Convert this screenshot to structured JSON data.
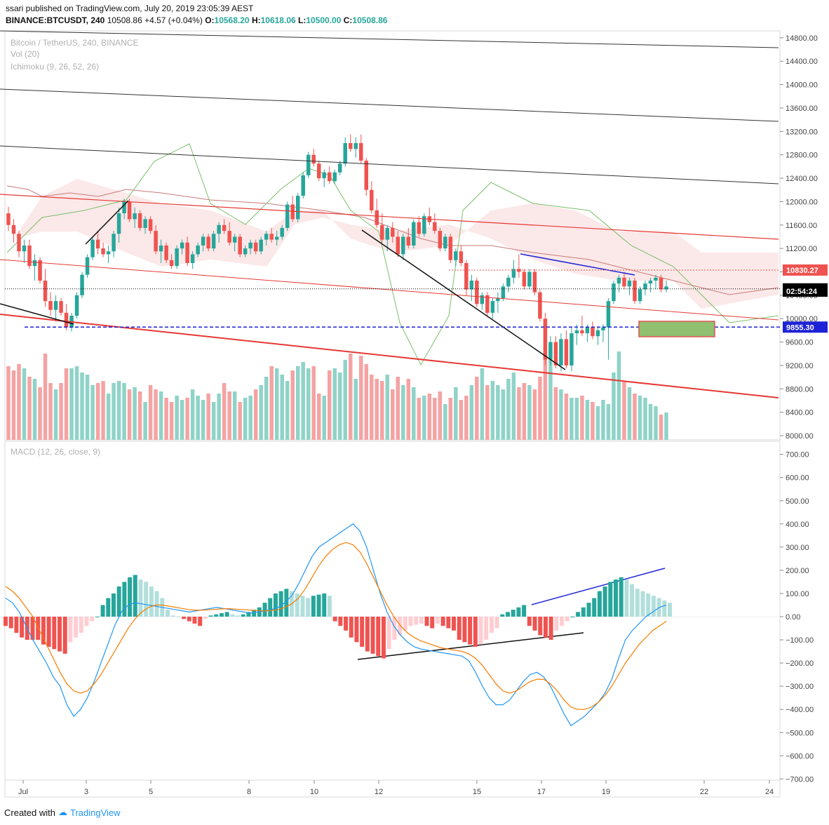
{
  "header": {
    "published": "ssari published on TradingView.com, July 20, 2019 23:05:39 AEST",
    "symbol": "BINANCE:BTCUSDT, 240",
    "last": "10508.86",
    "change": "+4.57 (+0.04%)",
    "o_label": "O:",
    "o_value": "10568.20",
    "h_label": "H:",
    "h_value": "10618.06",
    "l_label": "L:",
    "l_value": "10500.00",
    "c_label": "C:",
    "c_value": "10508.86"
  },
  "legend": {
    "title": "Bitcoin / TetherUS, 240, BINANCE",
    "vol": "Vol (20)",
    "ichimoku": "Ichimoku (9, 26, 52, 26)",
    "macd": "MACD (12, 26, close, 9)"
  },
  "footer": {
    "created_with": "Created with",
    "brand": "TradingView"
  },
  "colors": {
    "up": "#26a69a",
    "down": "#ef5350",
    "up_vol": "#8fd3c8",
    "down_vol": "#f4a3a3",
    "macd": "#2196f3",
    "signal": "#f57c00"
  },
  "chart_data": {
    "type": "candlestick",
    "price_axis": {
      "ticks": [
        "14800.00",
        "14400.00",
        "14000.00",
        "13600.00",
        "13200.00",
        "12800.00",
        "12400.00",
        "12000.00",
        "11600.00",
        "11200.00",
        "10800.00",
        "10400.00",
        "10000.00",
        "9600.00",
        "9200.00",
        "8800.00",
        "8400.00",
        "8000.00"
      ]
    },
    "price_labels": [
      {
        "value": 10830.27,
        "text": "10830.27",
        "color": "#ef5350"
      },
      {
        "value": 10508.86,
        "text": "10508.86",
        "color": "#000000"
      },
      {
        "value": 10470,
        "text": "02:54:24",
        "color": "#000000"
      },
      {
        "value": 9855.3,
        "text": "9855.30",
        "color": "#1e22d6"
      }
    ],
    "macd_axis": {
      "ticks": [
        "700.00",
        "600.00",
        "500.00",
        "400.00",
        "300.00",
        "200.00",
        "100.00",
        "0.00",
        "−100.00",
        "−200.00",
        "−300.00",
        "−400.00",
        "−500.00",
        "−600.00",
        "−700.00"
      ]
    },
    "time_axis": {
      "ticks": [
        "Jul",
        "3",
        "5",
        "8",
        "10",
        "12",
        "15",
        "17",
        "19",
        "22",
        "24"
      ]
    },
    "candles": [
      [
        11800,
        11910,
        11500,
        11600
      ],
      [
        11600,
        11700,
        11300,
        11450
      ],
      [
        11450,
        11500,
        11050,
        11150
      ],
      [
        11150,
        11350,
        10950,
        11250
      ],
      [
        11250,
        11350,
        10850,
        10900
      ],
      [
        10900,
        11100,
        10650,
        11000
      ],
      [
        11000,
        11050,
        10600,
        10650
      ],
      [
        10650,
        10850,
        10200,
        10300
      ],
      [
        10300,
        10450,
        10050,
        10150
      ],
      [
        10150,
        10400,
        9950,
        10300
      ],
      [
        10300,
        10350,
        10050,
        10100
      ],
      [
        10100,
        10250,
        9800,
        9850
      ],
      [
        9850,
        10100,
        9780,
        10050
      ],
      [
        10050,
        10450,
        10000,
        10400
      ],
      [
        10400,
        10800,
        10350,
        10750
      ],
      [
        10750,
        11100,
        10700,
        11050
      ],
      [
        11050,
        11400,
        11000,
        11350
      ],
      [
        11350,
        11500,
        11100,
        11200
      ],
      [
        11200,
        11300,
        11050,
        11100
      ],
      [
        11100,
        11250,
        10950,
        11150
      ],
      [
        11150,
        11500,
        11050,
        11450
      ],
      [
        11450,
        11900,
        11300,
        11800
      ],
      [
        11800,
        12050,
        11700,
        12000
      ],
      [
        12000,
        12050,
        11650,
        11700
      ],
      [
        11700,
        11900,
        11550,
        11800
      ],
      [
        11800,
        11850,
        11500,
        11550
      ],
      [
        11550,
        11750,
        11450,
        11700
      ],
      [
        11700,
        11750,
        11450,
        11500
      ],
      [
        11500,
        11600,
        11100,
        11150
      ],
      [
        11150,
        11350,
        10950,
        11250
      ],
      [
        11250,
        11300,
        10950,
        11000
      ],
      [
        11000,
        11100,
        10850,
        10900
      ],
      [
        10900,
        11250,
        10850,
        11200
      ],
      [
        11200,
        11350,
        11100,
        11300
      ],
      [
        11300,
        11400,
        10900,
        10950
      ],
      [
        10950,
        11150,
        10850,
        11100
      ],
      [
        11100,
        11300,
        11050,
        11250
      ],
      [
        11250,
        11450,
        11150,
        11400
      ],
      [
        11400,
        11450,
        11150,
        11200
      ],
      [
        11200,
        11500,
        11150,
        11450
      ],
      [
        11450,
        11650,
        11300,
        11600
      ],
      [
        11600,
        11700,
        11450,
        11500
      ],
      [
        11500,
        11650,
        11250,
        11300
      ],
      [
        11300,
        11450,
        11150,
        11400
      ],
      [
        11400,
        11450,
        11050,
        11100
      ],
      [
        11100,
        11250,
        11050,
        11200
      ],
      [
        11200,
        11350,
        11100,
        11300
      ],
      [
        11300,
        11350,
        11100,
        11150
      ],
      [
        11150,
        11400,
        11100,
        11350
      ],
      [
        11350,
        11500,
        11250,
        11450
      ],
      [
        11450,
        11550,
        11300,
        11350
      ],
      [
        11350,
        11500,
        11250,
        11400
      ],
      [
        11400,
        11600,
        11350,
        11550
      ],
      [
        11550,
        12000,
        11500,
        11950
      ],
      [
        11950,
        12100,
        11650,
        11700
      ],
      [
        11700,
        12150,
        11650,
        12100
      ],
      [
        12100,
        12500,
        12050,
        12450
      ],
      [
        12450,
        12850,
        12400,
        12800
      ],
      [
        12800,
        12900,
        12600,
        12650
      ],
      [
        12650,
        12700,
        12350,
        12400
      ],
      [
        12400,
        12550,
        12250,
        12500
      ],
      [
        12500,
        12600,
        12300,
        12350
      ],
      [
        12350,
        12550,
        12300,
        12500
      ],
      [
        12500,
        12700,
        12450,
        12650
      ],
      [
        12650,
        13100,
        12600,
        13000
      ],
      [
        13000,
        13150,
        12850,
        12900
      ],
      [
        12900,
        13100,
        12750,
        13000
      ],
      [
        13000,
        13150,
        12650,
        12700
      ],
      [
        12700,
        12750,
        12100,
        12200
      ],
      [
        12200,
        12350,
        11800,
        11850
      ],
      [
        11850,
        12050,
        11550,
        11600
      ],
      [
        11600,
        11800,
        11300,
        11350
      ],
      [
        11350,
        11600,
        11150,
        11550
      ],
      [
        11550,
        11650,
        11300,
        11400
      ],
      [
        11400,
        11500,
        11050,
        11100
      ],
      [
        11100,
        11450,
        11000,
        11400
      ],
      [
        11400,
        11550,
        11200,
        11250
      ],
      [
        11250,
        11700,
        11200,
        11650
      ],
      [
        11650,
        11750,
        11400,
        11450
      ],
      [
        11450,
        11800,
        11400,
        11750
      ],
      [
        11750,
        11900,
        11600,
        11650
      ],
      [
        11650,
        11800,
        11450,
        11500
      ],
      [
        11500,
        11550,
        11150,
        11200
      ],
      [
        11200,
        11450,
        11150,
        11400
      ],
      [
        11400,
        11450,
        10950,
        11000
      ],
      [
        11000,
        11200,
        10900,
        11150
      ],
      [
        11150,
        11250,
        10900,
        10950
      ],
      [
        10950,
        11000,
        10400,
        10500
      ],
      [
        10500,
        10750,
        10300,
        10650
      ],
      [
        10650,
        10700,
        10200,
        10250
      ],
      [
        10250,
        10450,
        10150,
        10400
      ],
      [
        10400,
        10450,
        10050,
        10100
      ],
      [
        10100,
        10350,
        10000,
        10300
      ],
      [
        10300,
        10450,
        10100,
        10350
      ],
      [
        10350,
        10600,
        10300,
        10550
      ],
      [
        10550,
        10750,
        10450,
        10700
      ],
      [
        10700,
        11000,
        10600,
        10850
      ],
      [
        10850,
        11100,
        10700,
        10800
      ],
      [
        10800,
        10850,
        10500,
        10550
      ],
      [
        10550,
        10850,
        10500,
        10800
      ],
      [
        10800,
        10850,
        10400,
        10450
      ],
      [
        10450,
        10500,
        9950,
        10000
      ],
      [
        10000,
        10100,
        9200,
        9300
      ],
      [
        9300,
        9700,
        9200,
        9600
      ],
      [
        9600,
        9700,
        9150,
        9200
      ],
      [
        9200,
        9750,
        9100,
        9650
      ],
      [
        9650,
        9800,
        9150,
        9200
      ],
      [
        9200,
        9850,
        9100,
        9750
      ],
      [
        9750,
        9900,
        9550,
        9800
      ],
      [
        9800,
        10050,
        9700,
        9750
      ],
      [
        9750,
        9900,
        9600,
        9850
      ],
      [
        9850,
        9950,
        9650,
        9700
      ],
      [
        9700,
        9850,
        9550,
        9800
      ],
      [
        9800,
        9900,
        9600,
        9850
      ],
      [
        9850,
        10350,
        9300,
        10300
      ],
      [
        10300,
        10650,
        10250,
        10600
      ],
      [
        10600,
        10750,
        10450,
        10700
      ],
      [
        10700,
        10800,
        10500,
        10550
      ],
      [
        10550,
        10700,
        10400,
        10650
      ],
      [
        10650,
        10700,
        10250,
        10300
      ],
      [
        10300,
        10550,
        10250,
        10500
      ],
      [
        10500,
        10650,
        10400,
        10600
      ],
      [
        10600,
        10700,
        10450,
        10650
      ],
      [
        10650,
        10750,
        10500,
        10700
      ],
      [
        10700,
        10750,
        10450,
        10500
      ],
      [
        10500,
        10650,
        10450,
        10550
      ]
    ],
    "volume": [
      35,
      33,
      36,
      34,
      30,
      29,
      25,
      41,
      27,
      24,
      27,
      34,
      34,
      35,
      32,
      31,
      26,
      27,
      28,
      22,
      27,
      28,
      27,
      24,
      25,
      23,
      18,
      26,
      24,
      23,
      20,
      18,
      21,
      19,
      20,
      24,
      21,
      19,
      22,
      18,
      22,
      27,
      23,
      23,
      18,
      20,
      21,
      24,
      26,
      30,
      35,
      34,
      31,
      28,
      33,
      35,
      37,
      34,
      35,
      22,
      21,
      33,
      34,
      32,
      38,
      41,
      29,
      40,
      36,
      31,
      29,
      28,
      31,
      24,
      30,
      26,
      29,
      25,
      20,
      21,
      22,
      20,
      23,
      17,
      20,
      25,
      19,
      21,
      26,
      30,
      34,
      26,
      28,
      26,
      24,
      29,
      32,
      25,
      27,
      26,
      24,
      30,
      40,
      38,
      25,
      24,
      22,
      20,
      20,
      21,
      19,
      18,
      16,
      19,
      17,
      32,
      42,
      28,
      25,
      22,
      21,
      20,
      17,
      16,
      12,
      13,
      12,
      5
    ],
    "macd": {
      "line": [
        80,
        60,
        20,
        -40,
        -100,
        -150,
        -200,
        -260,
        -300,
        -380,
        -430,
        -400,
        -350,
        -280,
        -200,
        -120,
        -40,
        20,
        50,
        60,
        55,
        50,
        45,
        40,
        35,
        30,
        25,
        20,
        25,
        30,
        35,
        40,
        35,
        30,
        25,
        20,
        15,
        20,
        25,
        30,
        40,
        60,
        90,
        140,
        200,
        260,
        300,
        320,
        340,
        360,
        380,
        400,
        370,
        300,
        200,
        100,
        20,
        -40,
        -80,
        -110,
        -130,
        -140,
        -145,
        -150,
        -155,
        -160,
        -165,
        -170,
        -190,
        -240,
        -300,
        -350,
        -380,
        -380,
        -360,
        -320,
        -280,
        -250,
        -240,
        -260,
        -300,
        -360,
        -420,
        -470,
        -450,
        -430,
        -400,
        -370,
        -330,
        -270,
        -180,
        -100,
        -60,
        -30,
        0,
        20,
        40,
        50
      ],
      "signal": [
        130,
        110,
        80,
        40,
        0,
        -60,
        -120,
        -180,
        -240,
        -290,
        -320,
        -330,
        -320,
        -290,
        -250,
        -200,
        -150,
        -100,
        -50,
        -10,
        20,
        40,
        50,
        50,
        45,
        40,
        35,
        30,
        28,
        28,
        30,
        32,
        34,
        34,
        32,
        30,
        28,
        26,
        25,
        26,
        30,
        40,
        55,
        80,
        120,
        170,
        220,
        260,
        290,
        310,
        320,
        310,
        280,
        230,
        170,
        110,
        50,
        0,
        -40,
        -70,
        -90,
        -105,
        -115,
        -125,
        -135,
        -140,
        -145,
        -150,
        -160,
        -180,
        -210,
        -250,
        -290,
        -320,
        -330,
        -320,
        -300,
        -280,
        -270,
        -270,
        -290,
        -320,
        -360,
        -390,
        -400,
        -400,
        -390,
        -370,
        -340,
        -300,
        -250,
        -200,
        -160,
        -120,
        -90,
        -60,
        -40,
        -20
      ],
      "hist": [
        -40,
        -50,
        -70,
        -90,
        -100,
        -100,
        -100,
        -120,
        -130,
        -140,
        -150,
        -160,
        -110,
        -90,
        -70,
        -40,
        -20,
        0,
        50,
        80,
        100,
        130,
        150,
        170,
        180,
        160,
        150,
        130,
        110,
        80,
        30,
        5,
        0,
        -10,
        -20,
        -30,
        -40,
        -10,
        5,
        10,
        15,
        20,
        10,
        5,
        10,
        20,
        30,
        40,
        60,
        80,
        100,
        110,
        120,
        110,
        100,
        90,
        80,
        90,
        95,
        100,
        90,
        -20,
        -40,
        -60,
        -90,
        -110,
        -130,
        -150,
        -160,
        -170,
        -180,
        -140,
        -100,
        -80,
        -60,
        -40,
        -35,
        -30,
        -40,
        -50,
        -30,
        -40,
        -50,
        -60,
        -100,
        -110,
        -120,
        -130,
        -120,
        -100,
        -70,
        -50,
        10,
        20,
        30,
        40,
        50,
        -40,
        -60,
        -80,
        -90,
        -100,
        -60,
        -40,
        -20,
        0,
        20,
        40,
        60,
        80,
        110,
        130,
        150,
        160,
        170,
        160,
        140,
        120,
        110,
        100,
        90,
        80,
        70,
        60
      ]
    }
  }
}
